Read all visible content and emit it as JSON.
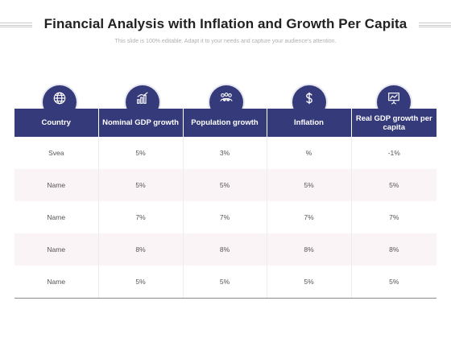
{
  "title": "Financial Analysis with Inflation and Growth Per Capita",
  "subtitle": "This slide is 100% editable. Adapt it to your needs and capture your audience's attention.",
  "icons": [
    "globe-icon",
    "bar-chart-icon",
    "people-group-icon",
    "dollar-icon",
    "presentation-chart-icon"
  ],
  "colors": {
    "header": "#353a7a",
    "alt_row": "#fbf4f7"
  },
  "table": {
    "headers": [
      "Country",
      "Nominal GDP growth",
      "Population growth",
      "Inflation",
      "Real GDP growth per capita"
    ],
    "rows": [
      [
        "Svea",
        "5%",
        "3%",
        "%",
        "-1%"
      ],
      [
        "Name",
        "5%",
        "5%",
        "5%",
        "5%"
      ],
      [
        "Name",
        "7%",
        "7%",
        "7%",
        "7%"
      ],
      [
        "Name",
        "8%",
        "8%",
        "8%",
        "8%"
      ],
      [
        "Name",
        "5%",
        "5%",
        "5%",
        "5%"
      ]
    ]
  }
}
